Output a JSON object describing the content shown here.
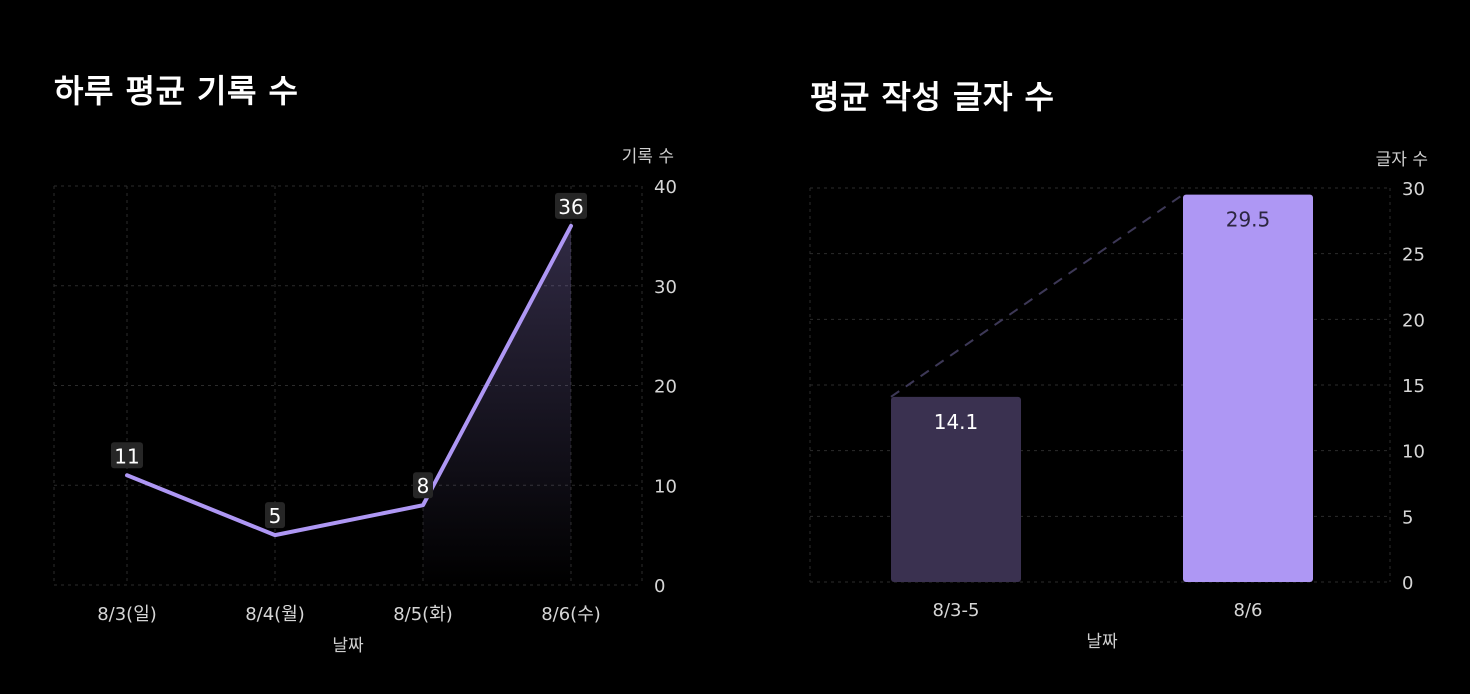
{
  "colors": {
    "background": "#000000",
    "grid": "#2b2b2b",
    "line": "#ae97f4",
    "bar_muted": "#3a3150",
    "bar_accent": "#ae97f4",
    "trend_dashed": "#3d3857",
    "label_bg": "#262626"
  },
  "chart_data": [
    {
      "type": "line",
      "title": "하루 평균 기록 수",
      "xlabel": "날짜",
      "ylabel": "기록 수",
      "categories": [
        "8/3(일)",
        "8/4(월)",
        "8/5(화)",
        "8/6(수)"
      ],
      "values": [
        11,
        5,
        8,
        36
      ],
      "data_labels": [
        "11",
        "5",
        "8",
        "36"
      ],
      "ylim": [
        0,
        40
      ],
      "yticks": [
        "0",
        "10",
        "20",
        "30",
        "40"
      ],
      "y_axis_side": "right",
      "grid": true,
      "area_fill_last_segment": true
    },
    {
      "type": "bar",
      "title": "평균 작성 글자 수",
      "xlabel": "날짜",
      "ylabel": "글자 수",
      "categories": [
        "8/3-5",
        "8/6"
      ],
      "values": [
        14.1,
        29.5
      ],
      "data_labels": [
        "14.1",
        "29.5"
      ],
      "ylim": [
        0,
        30
      ],
      "yticks": [
        "0",
        "5",
        "10",
        "15",
        "20",
        "25",
        "30"
      ],
      "y_axis_side": "right",
      "grid": true,
      "trend_line": "dashed"
    }
  ]
}
